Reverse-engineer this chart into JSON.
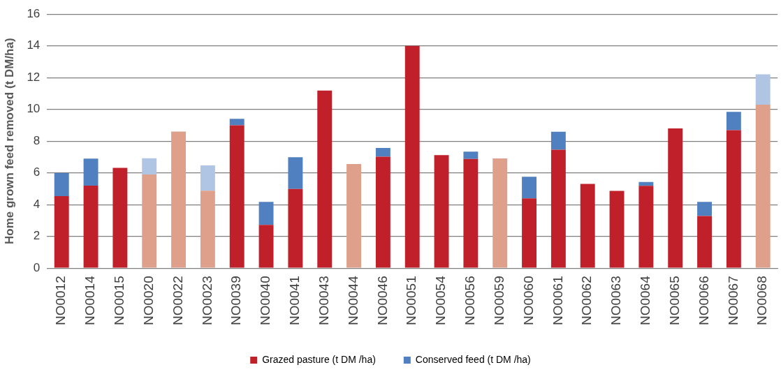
{
  "chart_data": {
    "type": "bar",
    "stacked": true,
    "ylabel": "Home grown feed removed (t DM/ha)",
    "categories": [
      "NO0012",
      "NO0014",
      "NO0015",
      "NO0020",
      "NO0022",
      "NO0023",
      "NO0039",
      "NO0040",
      "NO0041",
      "NO0043",
      "NO0044",
      "NO0046",
      "NO0051",
      "NO0054",
      "NO0056",
      "NO0059",
      "NO0060",
      "NO0061",
      "NO0062",
      "NO0063",
      "NO0064",
      "NO0065",
      "NO0066",
      "NO0067",
      "NO0068"
    ],
    "series": [
      {
        "name": "Grazed pasture (t DM /ha)",
        "color": "#c0202a",
        "colors": [
          "#c0202a",
          "#c0202a",
          "#c0202a",
          "#dea08a",
          "#dea08a",
          "#dea08a",
          "#c0202a",
          "#c0202a",
          "#c0202a",
          "#c0202a",
          "#dea08a",
          "#c0202a",
          "#c0202a",
          "#c0202a",
          "#c0202a",
          "#dea08a",
          "#c0202a",
          "#c0202a",
          "#c0202a",
          "#c0202a",
          "#c0202a",
          "#c0202a",
          "#c0202a",
          "#c0202a",
          "#dea08a"
        ],
        "values": [
          4.54,
          5.2,
          6.32,
          5.9,
          8.6,
          4.88,
          9.0,
          2.72,
          4.99,
          11.19,
          6.56,
          7.02,
          14.0,
          7.12,
          6.88,
          6.91,
          4.39,
          7.46,
          5.31,
          4.87,
          5.19,
          8.8,
          3.28,
          8.69,
          10.3
        ]
      },
      {
        "name": "Conserved feed (t DM /ha)",
        "color": "#5080c0",
        "colors": [
          "#5080c0",
          "#5080c0",
          "#5080c0",
          "#b0c4e4",
          "#b0c4e4",
          "#b0c4e4",
          "#5080c0",
          "#5080c0",
          "#5080c0",
          "#5080c0",
          "#b0c4e4",
          "#5080c0",
          "#5080c0",
          "#5080c0",
          "#5080c0",
          "#b0c4e4",
          "#5080c0",
          "#5080c0",
          "#5080c0",
          "#5080c0",
          "#5080c0",
          "#5080c0",
          "#5080c0",
          "#5080c0",
          "#b0c4e4"
        ],
        "values": [
          1.46,
          1.7,
          0,
          1.02,
          0,
          1.59,
          0.4,
          1.46,
          2.0,
          0,
          0,
          0.55,
          0,
          0,
          0.46,
          0,
          1.37,
          1.13,
          0,
          0,
          0.24,
          0,
          0.9,
          1.15,
          1.91
        ]
      }
    ],
    "ylim": [
      0,
      16
    ],
    "yticks": [
      0,
      2,
      4,
      6,
      8,
      10,
      12,
      14,
      16
    ],
    "grid": "y",
    "legend": "bottom"
  }
}
